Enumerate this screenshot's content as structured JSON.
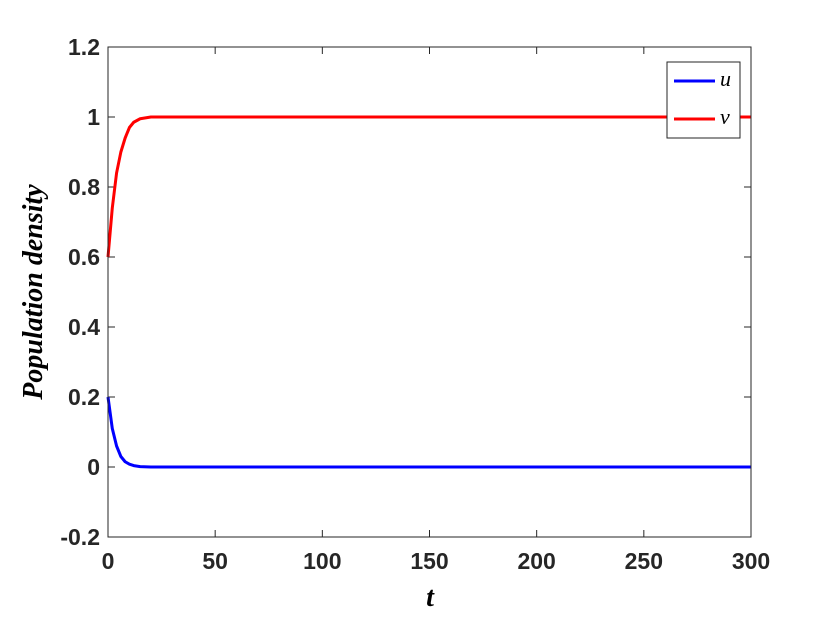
{
  "chart_data": {
    "type": "line",
    "xlabel": "t",
    "ylabel": "Population  density",
    "x": [
      0,
      2,
      4,
      6,
      8,
      10,
      12,
      15,
      20,
      300
    ],
    "series": [
      {
        "name": "u",
        "color": "#0000ff",
        "values": [
          0.2,
          0.11,
          0.06,
          0.03,
          0.015,
          0.008,
          0.004,
          0.001,
          0,
          0
        ]
      },
      {
        "name": "v",
        "color": "#ff0000",
        "values": [
          0.6,
          0.74,
          0.84,
          0.9,
          0.94,
          0.97,
          0.985,
          0.995,
          1,
          1
        ]
      }
    ],
    "xlim": [
      0,
      300
    ],
    "xticks": [
      0,
      50,
      100,
      150,
      200,
      250,
      300
    ],
    "ylim": [
      -0.2,
      1.2
    ],
    "yticks": [
      -0.2,
      0,
      0.2,
      0.4,
      0.6,
      0.8,
      1,
      1.2
    ],
    "grid": false,
    "legend": "upper right"
  }
}
